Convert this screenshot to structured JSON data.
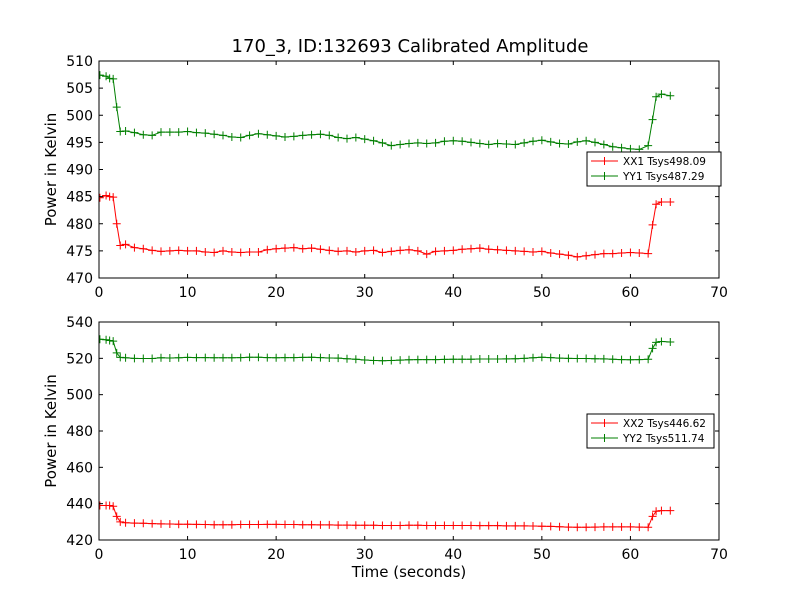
{
  "figure": {
    "title": "170_3, ID:132693 Calibrated Amplitude"
  },
  "colors": {
    "red": "#ff0000",
    "green": "#007f00",
    "axes": "#000000",
    "background": "#ffffff"
  },
  "chart_data": [
    {
      "type": "line",
      "title": "170_3, ID:132693 Calibrated Amplitude",
      "xlabel": "",
      "ylabel": "Power in Kelvin",
      "xlim": [
        0,
        70
      ],
      "ylim": [
        470,
        510
      ],
      "xticks": [
        0,
        10,
        20,
        30,
        40,
        50,
        60,
        70
      ],
      "yticks": [
        470,
        475,
        480,
        485,
        490,
        495,
        500,
        505,
        510
      ],
      "grid": false,
      "legend_position": "right",
      "marker": "+",
      "series": [
        {
          "name": "XX1 Tsys498.09",
          "color": "#ff0000",
          "x": [
            0.1,
            0.8,
            1.2,
            1.6,
            2,
            2.4,
            3,
            4,
            5,
            6,
            7,
            8,
            9,
            10,
            11,
            12,
            13,
            14,
            15,
            16,
            17,
            18,
            19,
            20,
            21,
            22,
            23,
            24,
            25,
            26,
            27,
            28,
            29,
            30,
            31,
            32,
            33,
            34,
            35,
            36,
            37,
            38,
            39,
            40,
            41,
            42,
            43,
            44,
            45,
            46,
            47,
            48,
            49,
            50,
            51,
            52,
            53,
            54,
            55,
            56,
            57,
            58,
            59,
            60,
            61,
            62,
            62.5,
            62.9,
            63.5,
            64.5
          ],
          "y": [
            484.8,
            485.2,
            485,
            484.9,
            480,
            476,
            476.2,
            475.6,
            475.4,
            475.1,
            474.9,
            475,
            475.1,
            475,
            475,
            474.8,
            474.7,
            475,
            474.8,
            474.7,
            474.8,
            474.8,
            475.2,
            475.4,
            475.5,
            475.6,
            475.4,
            475.5,
            475.3,
            475.1,
            474.9,
            475,
            474.8,
            475,
            475.1,
            474.7,
            474.9,
            475.1,
            475.2,
            475,
            474.4,
            474.9,
            475,
            475.1,
            475.3,
            475.4,
            475.5,
            475.3,
            475.2,
            475.1,
            475,
            474.9,
            474.8,
            474.9,
            474.6,
            474.4,
            474.2,
            473.9,
            474.1,
            474.3,
            474.5,
            474.5,
            474.6,
            474.7,
            474.6,
            474.5,
            479.8,
            483.6,
            484,
            484
          ]
        },
        {
          "name": "YY1 Tsys487.29",
          "color": "#007f00",
          "x": [
            0.1,
            0.8,
            1.2,
            1.6,
            2,
            2.4,
            3,
            4,
            5,
            6,
            7,
            8,
            9,
            10,
            11,
            12,
            13,
            14,
            15,
            16,
            17,
            18,
            19,
            20,
            21,
            22,
            23,
            24,
            25,
            26,
            27,
            28,
            29,
            30,
            31,
            32,
            33,
            34,
            35,
            36,
            37,
            38,
            39,
            40,
            41,
            42,
            43,
            44,
            45,
            46,
            47,
            48,
            49,
            50,
            51,
            52,
            53,
            54,
            55,
            56,
            57,
            58,
            59,
            60,
            61,
            62,
            62.5,
            62.9,
            63.5,
            64.5
          ],
          "y": [
            507.4,
            507.2,
            506.8,
            506.7,
            501.5,
            497,
            497.1,
            496.8,
            496.4,
            496.3,
            496.9,
            496.9,
            496.9,
            497,
            496.8,
            496.7,
            496.5,
            496.3,
            496,
            495.9,
            496.3,
            496.6,
            496.4,
            496.2,
            496,
            496.1,
            496.3,
            496.4,
            496.5,
            496.3,
            495.9,
            495.7,
            495.9,
            495.6,
            495.3,
            494.9,
            494.4,
            494.6,
            494.8,
            494.9,
            494.8,
            494.9,
            495.2,
            495.3,
            495.2,
            495,
            494.8,
            494.6,
            494.8,
            494.7,
            494.6,
            494.9,
            495.2,
            495.4,
            495.1,
            494.8,
            494.7,
            495.1,
            495.3,
            495,
            494.6,
            494.2,
            494,
            493.8,
            493.7,
            494.4,
            499.2,
            503.4,
            503.9,
            503.6
          ]
        }
      ]
    },
    {
      "type": "line",
      "title": "",
      "xlabel": "Time (seconds)",
      "ylabel": "Power in Kelvin",
      "xlim": [
        0,
        70
      ],
      "ylim": [
        420,
        540
      ],
      "xticks": [
        0,
        10,
        20,
        30,
        40,
        50,
        60,
        70
      ],
      "yticks": [
        420,
        440,
        460,
        480,
        500,
        520,
        540
      ],
      "grid": false,
      "legend_position": "right",
      "marker": "+",
      "series": [
        {
          "name": "XX2 Tsys446.62",
          "color": "#ff0000",
          "x": [
            0.1,
            0.8,
            1.2,
            1.6,
            2,
            2.4,
            3,
            4,
            5,
            6,
            7,
            8,
            9,
            10,
            11,
            12,
            13,
            14,
            15,
            16,
            17,
            18,
            19,
            20,
            21,
            22,
            23,
            24,
            25,
            26,
            27,
            28,
            29,
            30,
            31,
            32,
            33,
            34,
            35,
            36,
            37,
            38,
            39,
            40,
            41,
            42,
            43,
            44,
            45,
            46,
            47,
            48,
            49,
            50,
            51,
            52,
            53,
            54,
            55,
            56,
            57,
            58,
            59,
            60,
            61,
            62,
            62.5,
            62.9,
            63.5,
            64.5
          ],
          "y": [
            439,
            439,
            439,
            438.6,
            433,
            430,
            429.5,
            429.3,
            429.2,
            429,
            428.9,
            428.8,
            428.7,
            428.7,
            428.6,
            428.5,
            428.4,
            428.4,
            428.4,
            428.5,
            428.5,
            428.5,
            428.6,
            428.6,
            428.5,
            428.5,
            428.4,
            428.4,
            428.3,
            428.3,
            428.2,
            428.2,
            428.1,
            428.1,
            428.1,
            428,
            428,
            428,
            428.1,
            428.1,
            428,
            428,
            428,
            428,
            428,
            428,
            427.9,
            427.9,
            427.9,
            427.8,
            427.8,
            427.8,
            427.7,
            427.6,
            427.5,
            427.3,
            427.1,
            427,
            427,
            427.1,
            427.2,
            427.2,
            427.2,
            427.2,
            427.1,
            427,
            433,
            435.8,
            436.2,
            436.2
          ]
        },
        {
          "name": "YY2 Tsys511.74",
          "color": "#007f00",
          "x": [
            0.1,
            0.8,
            1.2,
            1.6,
            2,
            2.4,
            3,
            4,
            5,
            6,
            7,
            8,
            9,
            10,
            11,
            12,
            13,
            14,
            15,
            16,
            17,
            18,
            19,
            20,
            21,
            22,
            23,
            24,
            25,
            26,
            27,
            28,
            29,
            30,
            31,
            32,
            33,
            34,
            35,
            36,
            37,
            38,
            39,
            40,
            41,
            42,
            43,
            44,
            45,
            46,
            47,
            48,
            49,
            50,
            51,
            52,
            53,
            54,
            55,
            56,
            57,
            58,
            59,
            60,
            61,
            62,
            62.5,
            62.9,
            63.5,
            64.5
          ],
          "y": [
            530.5,
            530.2,
            529.8,
            529.5,
            523,
            520.5,
            520.3,
            520,
            519.9,
            519.9,
            520.3,
            520.2,
            520.3,
            520.5,
            520.4,
            520.4,
            520.3,
            520.3,
            520.3,
            520.4,
            520.6,
            520.6,
            520.4,
            520.3,
            520.4,
            520.4,
            520.5,
            520.6,
            520.4,
            520.2,
            520.1,
            519.8,
            519.5,
            519.1,
            518.8,
            518.7,
            518.8,
            519,
            519.2,
            519.3,
            519.3,
            519.3,
            519.4,
            519.5,
            519.5,
            519.5,
            519.6,
            519.6,
            519.6,
            519.7,
            519.8,
            520,
            520.3,
            520.6,
            520.4,
            520.1,
            520,
            519.9,
            519.9,
            519.8,
            519.7,
            519.5,
            519.3,
            519.2,
            519.3,
            519.5,
            525.5,
            528.8,
            529.3,
            529
          ]
        }
      ]
    }
  ]
}
